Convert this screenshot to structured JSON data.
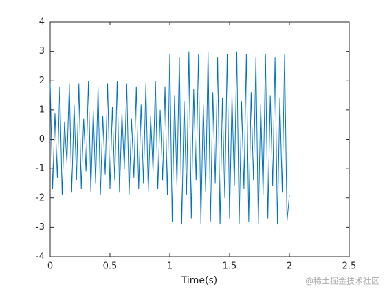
{
  "chart_data": {
    "type": "line",
    "x_label": "Time(s)",
    "x": [
      0,
      0.02,
      0.04,
      0.06,
      0.08,
      0.1,
      0.12,
      0.14,
      0.16,
      0.18,
      0.2,
      0.22,
      0.24,
      0.26,
      0.28,
      0.3,
      0.32,
      0.34,
      0.36,
      0.38,
      0.4,
      0.42,
      0.44,
      0.46,
      0.48,
      0.5,
      0.52,
      0.54,
      0.56,
      0.58,
      0.6,
      0.62,
      0.64,
      0.66,
      0.68,
      0.7,
      0.72,
      0.74,
      0.76,
      0.78,
      0.8,
      0.82,
      0.84,
      0.86,
      0.88,
      0.9,
      0.92,
      0.94,
      0.96,
      0.98,
      1.0,
      1.02,
      1.04,
      1.06,
      1.08,
      1.1,
      1.12,
      1.14,
      1.16,
      1.18,
      1.2,
      1.22,
      1.24,
      1.26,
      1.28,
      1.3,
      1.32,
      1.34,
      1.36,
      1.38,
      1.4,
      1.42,
      1.44,
      1.46,
      1.48,
      1.5,
      1.52,
      1.54,
      1.56,
      1.58,
      1.6,
      1.62,
      1.64,
      1.66,
      1.68,
      1.7,
      1.72,
      1.74,
      1.76,
      1.78,
      1.8,
      1.82,
      1.84,
      1.86,
      1.88,
      1.9,
      1.92,
      1.94,
      1.96,
      1.98,
      2.0
    ],
    "series": [
      {
        "color": "#0072bd",
        "values": [
          1.9,
          -1.7,
          0.9,
          -1.3,
          1.8,
          -1.9,
          0.6,
          -0.8,
          1.9,
          -1.8,
          1.2,
          -1.4,
          1.9,
          -1.7,
          0.7,
          -1.1,
          2.0,
          -1.8,
          1.0,
          -1.5,
          1.8,
          -1.9,
          0.8,
          -1.2,
          1.9,
          -1.7,
          1.1,
          -1.4,
          2.0,
          -1.8,
          0.9,
          -1.0,
          1.9,
          -1.9,
          0.7,
          -1.3,
          1.8,
          -1.7,
          1.2,
          -1.5,
          1.9,
          -1.8,
          0.8,
          -1.1,
          2.0,
          -1.7,
          1.0,
          -1.4,
          1.8,
          -1.9,
          2.9,
          -2.8,
          1.5,
          -1.6,
          2.8,
          -2.9,
          1.3,
          -1.9,
          3.0,
          -2.7,
          1.7,
          -1.4,
          2.9,
          -2.9,
          1.2,
          -1.8,
          3.0,
          -2.8,
          1.6,
          -1.5,
          2.8,
          -2.9,
          1.4,
          -2.0,
          2.9,
          -2.7,
          1.5,
          -1.6,
          3.0,
          -2.9,
          1.3,
          -1.7,
          2.9,
          -2.8,
          1.6,
          -1.4,
          2.8,
          -2.9,
          1.2,
          -1.9,
          2.9,
          -2.7,
          1.5,
          -1.6,
          2.8,
          -2.9,
          1.4,
          -1.8,
          2.9,
          -2.8,
          -1.9
        ]
      }
    ],
    "xlim": [
      0,
      2.5
    ],
    "xticks": [
      0,
      0.5,
      1,
      1.5,
      2,
      2.5
    ],
    "ylim": [
      -4,
      4
    ],
    "yticks": [
      -4,
      -3,
      -2,
      -1,
      0,
      1,
      2,
      3,
      4
    ],
    "watermark": "@稀土掘金技术社区"
  }
}
